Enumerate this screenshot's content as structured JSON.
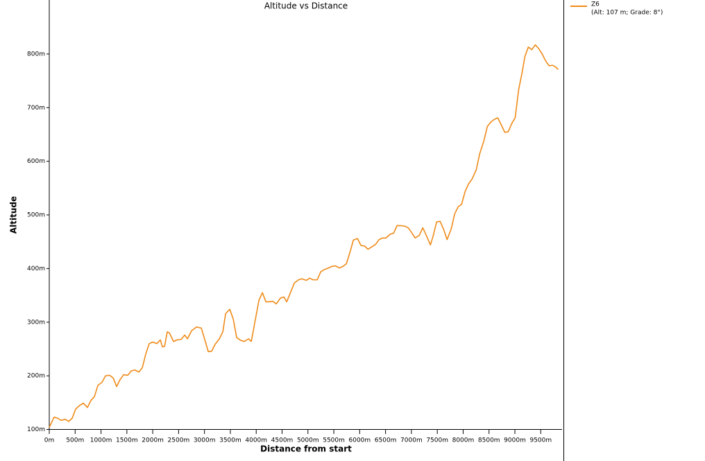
{
  "chart_data": {
    "type": "line",
    "title": "Altitude vs Distance",
    "x_label": "Distance from start",
    "y_label": "Altitude",
    "legend_detail": "(Alt: 107 m; Grade: 8°)",
    "xlim": [
      0,
      9920
    ],
    "ylim": [
      100,
      900
    ],
    "xticks": [
      {
        "value": 0,
        "label": "0m"
      },
      {
        "value": 500,
        "label": "500m"
      },
      {
        "value": 1000,
        "label": "1000m"
      },
      {
        "value": 1500,
        "label": "1500m"
      },
      {
        "value": 2000,
        "label": "2000m"
      },
      {
        "value": 2500,
        "label": "2500m"
      },
      {
        "value": 3000,
        "label": "3000m"
      },
      {
        "value": 3500,
        "label": "3500m"
      },
      {
        "value": 4000,
        "label": "4000m"
      },
      {
        "value": 4500,
        "label": "4500m"
      },
      {
        "value": 5000,
        "label": "5000m"
      },
      {
        "value": 5500,
        "label": "5500m"
      },
      {
        "value": 6000,
        "label": "6000m"
      },
      {
        "value": 6500,
        "label": "6500m"
      },
      {
        "value": 7000,
        "label": "7000m"
      },
      {
        "value": 7500,
        "label": "7500m"
      },
      {
        "value": 8000,
        "label": "8000m"
      },
      {
        "value": 8500,
        "label": "8500m"
      },
      {
        "value": 9000,
        "label": "9000m"
      },
      {
        "value": 9500,
        "label": "9500m"
      }
    ],
    "yticks": [
      {
        "value": 100,
        "label": "100m"
      },
      {
        "value": 200,
        "label": "200m"
      },
      {
        "value": 300,
        "label": "300m"
      },
      {
        "value": 400,
        "label": "400m"
      },
      {
        "value": 500,
        "label": "500m"
      },
      {
        "value": 600,
        "label": "600m"
      },
      {
        "value": 700,
        "label": "700m"
      },
      {
        "value": 800,
        "label": "800m"
      }
    ],
    "x": [
      0,
      94,
      161,
      228,
      309,
      376,
      443,
      510,
      590,
      658,
      738,
      805,
      872,
      939,
      1020,
      1087,
      1168,
      1235,
      1302,
      1369,
      1436,
      1516,
      1584,
      1651,
      1731,
      1798,
      1866,
      1932,
      2000,
      2080,
      2147,
      2187,
      2228,
      2281,
      2322,
      2402,
      2469,
      2550,
      2617,
      2671,
      2751,
      2845,
      2939,
      3020,
      3073,
      3140,
      3207,
      3288,
      3355,
      3409,
      3489,
      3556,
      3623,
      3704,
      3771,
      3852,
      3905,
      3986,
      4053,
      4120,
      4187,
      4254,
      4321,
      4388,
      4469,
      4536,
      4590,
      4670,
      4737,
      4818,
      4885,
      4965,
      5033,
      5100,
      5180,
      5247,
      5314,
      5395,
      5462,
      5529,
      5610,
      5677,
      5744,
      5811,
      5878,
      5958,
      6025,
      6093,
      6160,
      6227,
      6307,
      6375,
      6442,
      6509,
      6589,
      6656,
      6723,
      6791,
      6871,
      6938,
      7005,
      7072,
      7153,
      7220,
      7287,
      7368,
      7421,
      7488,
      7555,
      7623,
      7690,
      7770,
      7837,
      7904,
      7971,
      8039,
      8106,
      8173,
      8253,
      8320,
      8401,
      8468,
      8535,
      8602,
      8669,
      8736,
      8804,
      8871,
      8938,
      9005,
      9072,
      9139,
      9193,
      9260,
      9327,
      9394,
      9461,
      9528,
      9595,
      9662,
      9730,
      9797,
      9837
    ],
    "series": [
      {
        "name": "Z6",
        "color": "#ef8a17",
        "values": [
          104,
          123,
          121,
          117,
          119,
          115,
          121,
          138,
          145,
          149,
          141,
          154,
          161,
          182,
          188,
          200,
          201,
          196,
          180,
          193,
          202,
          201,
          209,
          211,
          207,
          215,
          241,
          260,
          263,
          260,
          267,
          254,
          255,
          282,
          280,
          264,
          267,
          268,
          276,
          269,
          284,
          291,
          289,
          263,
          245,
          246,
          259,
          269,
          282,
          316,
          324,
          306,
          271,
          266,
          264,
          269,
          264,
          306,
          341,
          355,
          338,
          338,
          339,
          334,
          345,
          347,
          338,
          357,
          373,
          379,
          381,
          378,
          382,
          379,
          379,
          394,
          398,
          401,
          404,
          405,
          401,
          404,
          409,
          430,
          453,
          456,
          443,
          442,
          436,
          440,
          445,
          454,
          457,
          457,
          464,
          466,
          480,
          480,
          479,
          476,
          467,
          457,
          462,
          476,
          462,
          444,
          461,
          487,
          488,
          473,
          454,
          474,
          502,
          515,
          520,
          544,
          558,
          567,
          584,
          614,
          638,
          665,
          673,
          678,
          681,
          668,
          654,
          655,
          670,
          681,
          733,
          765,
          795,
          813,
          808,
          817,
          810,
          800,
          787,
          778,
          779,
          775,
          771
        ]
      }
    ]
  }
}
